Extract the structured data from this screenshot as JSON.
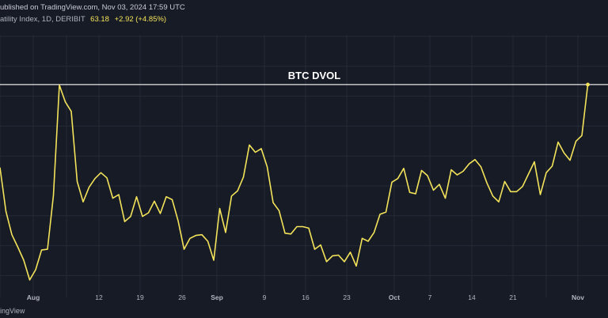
{
  "header": {
    "published": "ublished on TradingView.com, Nov 03, 2024 17:59 UTC",
    "symbol": "atility Index, 1D, DERIBIT",
    "price": "63.18",
    "change": "+2.92 (+4.85%)"
  },
  "footer": {
    "brand": "ingView"
  },
  "colors": {
    "background": "#171b26",
    "grid": "#242a36",
    "line": "#f3e35a",
    "reference_line": "#e6e6e6",
    "axis_text": "#b2b5be"
  },
  "chart_data": {
    "type": "line",
    "title": "BTC DVOL",
    "grid": true,
    "x_tick_labels": [
      "Aug",
      "12",
      "19",
      "26",
      "Sep",
      "9",
      "16",
      "23",
      "Oct",
      "7",
      "14",
      "21",
      "Nov"
    ],
    "ylim": [
      34,
      70
    ],
    "reference_line": {
      "value": 63.18,
      "label": "BTC DVOL"
    },
    "series": [
      {
        "values": [
          51.8,
          45.8,
          42.6,
          40.9,
          39.1,
          36.4,
          37.8,
          40.5,
          40.6,
          48.0,
          63.1,
          60.8,
          59.5,
          49.9,
          47.1,
          49.1,
          50.3,
          51.1,
          50.4,
          47.6,
          48.1,
          44.4,
          45.1,
          47.8,
          45.1,
          45.6,
          47.2,
          45.5,
          47.8,
          47.4,
          44.5,
          40.6,
          42.1,
          42.5,
          42.6,
          41.7,
          39.1,
          46.2,
          42.9,
          47.9,
          48.6,
          50.5,
          54.9,
          53.9,
          54.4,
          51.9,
          47.0,
          45.9,
          42.8,
          42.7,
          43.7,
          43.7,
          43.5,
          40.6,
          41.2,
          38.9,
          39.7,
          39.8,
          38.9,
          40.2,
          38.3,
          42.1,
          41.7,
          42.9,
          45.4,
          45.7,
          49.8,
          50.3,
          51.7,
          48.4,
          48.2,
          51.4,
          50.7,
          48.7,
          49.5,
          47.6,
          51.5,
          50.8,
          51.3,
          52.3,
          52.9,
          51.9,
          49.7,
          47.9,
          47.1,
          49.9,
          48.5,
          48.5,
          49.2,
          50.9,
          52.6,
          48.1,
          51.1,
          52.0,
          55.3,
          53.8,
          52.8,
          55.4,
          56.2,
          63.18
        ]
      }
    ]
  }
}
